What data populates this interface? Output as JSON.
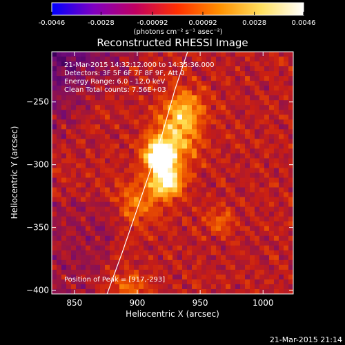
{
  "chart_data": {
    "type": "heatmap",
    "title": "Reconstructed RHESSI Image",
    "xlabel": "Heliocentric X (arcsec)",
    "ylabel": "Heliocentric Y (arcsec)",
    "xlim": [
      832,
      1024
    ],
    "ylim": [
      -403,
      -210
    ],
    "x_ticks": [
      850,
      900,
      950,
      1000
    ],
    "y_ticks": [
      -250,
      -300,
      -350,
      -400
    ],
    "colorbar": {
      "min": -0.0046,
      "max": 0.0046,
      "ticks": [
        -0.0046,
        -0.0028,
        -0.00092,
        0.00092,
        0.0028,
        0.0046
      ],
      "tick_labels": [
        "-0.0046",
        "-0.0028",
        "-0.00092",
        "0.00092",
        "0.0028",
        "0.0046"
      ],
      "units": "(photons cm⁻² s⁻¹ asec⁻²)",
      "colors": [
        "#0000ff",
        "#8000c0",
        "#c00060",
        "#ff3000",
        "#ff9000",
        "#ffe060",
        "#ffffff"
      ]
    },
    "annotations": [
      "21-Mar-2015 14:32:12.000 to 14:35:36.000",
      "Detectors: 3F 5F 6F 7F 8F 9F, Att 0",
      "Energy Range: 6.0 - 12.0 keV",
      "Clean     Total counts: 7.56E+03"
    ],
    "peak": {
      "label": "Position of Peak = [917,-293]",
      "x": 917,
      "y": -293
    },
    "sources": [
      {
        "x": 917,
        "y": -293,
        "intensity": 1.0,
        "sigma": 8
      },
      {
        "x": 923,
        "y": -313,
        "intensity": 0.95,
        "sigma": 9
      },
      {
        "x": 937,
        "y": -255,
        "intensity": 0.55,
        "sigma": 11
      },
      {
        "x": 930,
        "y": -280,
        "intensity": 0.6,
        "sigma": 14
      },
      {
        "x": 966,
        "y": -346,
        "intensity": 0.35,
        "sigma": 7
      },
      {
        "x": 895,
        "y": -398,
        "intensity": 0.35,
        "sigma": 9
      },
      {
        "x": 900,
        "y": -330,
        "intensity": 0.4,
        "sigma": 12
      }
    ],
    "limb_line": [
      [
        876,
        -403
      ],
      [
        888,
        -370
      ],
      [
        900,
        -335
      ],
      [
        912,
        -300
      ],
      [
        920,
        -275
      ],
      [
        930,
        -240
      ],
      [
        940,
        -210
      ]
    ]
  },
  "footer": {
    "timestamp": "21-Mar-2015 21:14"
  }
}
